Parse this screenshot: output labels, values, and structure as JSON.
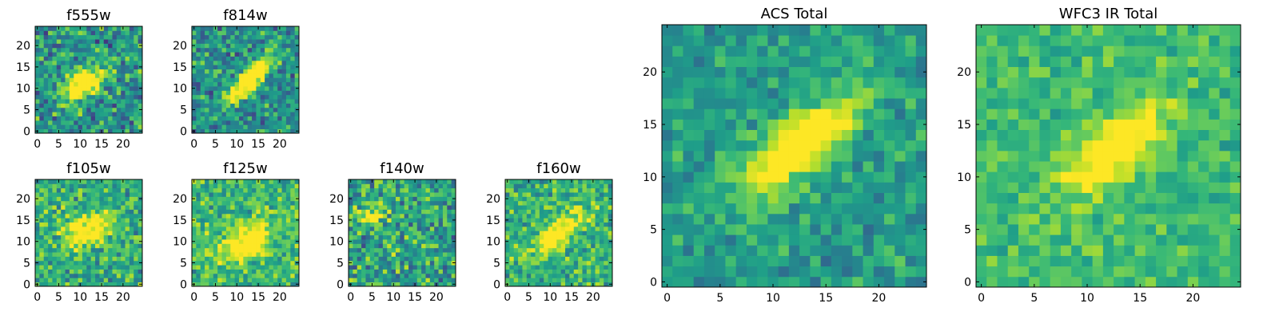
{
  "figure": {
    "background": "#ffffff",
    "colormap": "viridis"
  },
  "chart_data": [
    {
      "type": "heatmap",
      "title": "f555w",
      "grid_size": 25,
      "xlim": [
        0,
        24
      ],
      "ylim": [
        0,
        24
      ],
      "xticks": [
        "0",
        "5",
        "10",
        "15",
        "20"
      ],
      "yticks": [
        "0",
        "5",
        "10",
        "15",
        "20"
      ],
      "feature": {
        "cx": 11,
        "cy": 11,
        "sigma": 2.6,
        "elongation": 1.5,
        "angle_deg": 35,
        "peak": 0.85
      },
      "noise_level": 0.38,
      "seed": 11,
      "background_level": 0.52
    },
    {
      "type": "heatmap",
      "title": "f814w",
      "grid_size": 25,
      "xlim": [
        0,
        24
      ],
      "ylim": [
        0,
        24
      ],
      "xticks": [
        "0",
        "5",
        "10",
        "15",
        "20"
      ],
      "yticks": [
        "0",
        "5",
        "10",
        "15",
        "20"
      ],
      "feature": {
        "cx": 13,
        "cy": 12,
        "sigma": 2.2,
        "elongation": 2.2,
        "angle_deg": 45,
        "peak": 0.95
      },
      "noise_level": 0.34,
      "seed": 23,
      "background_level": 0.5
    },
    {
      "type": "heatmap",
      "title": "f105w",
      "grid_size": 25,
      "xlim": [
        0,
        24
      ],
      "ylim": [
        0,
        24
      ],
      "xticks": [
        "0",
        "5",
        "10",
        "15",
        "20"
      ],
      "yticks": [
        "0",
        "5",
        "10",
        "15",
        "20"
      ],
      "feature": {
        "cx": 12,
        "cy": 13,
        "sigma": 3.0,
        "elongation": 1.3,
        "angle_deg": 20,
        "peak": 0.55
      },
      "noise_level": 0.32,
      "seed": 37,
      "background_level": 0.62
    },
    {
      "type": "heatmap",
      "title": "f125w",
      "grid_size": 25,
      "xlim": [
        0,
        24
      ],
      "ylim": [
        0,
        24
      ],
      "xticks": [
        "0",
        "5",
        "10",
        "15",
        "20"
      ],
      "yticks": [
        "0",
        "5",
        "10",
        "15",
        "20"
      ],
      "feature": {
        "cx": 12,
        "cy": 10,
        "sigma": 3.2,
        "elongation": 1.4,
        "angle_deg": 30,
        "peak": 0.55
      },
      "noise_level": 0.3,
      "seed": 41,
      "background_level": 0.66
    },
    {
      "type": "heatmap",
      "title": "f140w",
      "grid_size": 25,
      "xlim": [
        0,
        24
      ],
      "ylim": [
        0,
        24
      ],
      "xticks": [
        "0",
        "5",
        "10",
        "15",
        "20"
      ],
      "yticks": [
        "0",
        "5",
        "10",
        "15",
        "20"
      ],
      "feature": {
        "cx": 5,
        "cy": 16,
        "sigma": 1.8,
        "elongation": 1.2,
        "angle_deg": 0,
        "peak": 0.45
      },
      "noise_level": 0.38,
      "seed": 53,
      "background_level": 0.58
    },
    {
      "type": "heatmap",
      "title": "f160w",
      "grid_size": 25,
      "xlim": [
        0,
        24
      ],
      "ylim": [
        0,
        24
      ],
      "xticks": [
        "0",
        "5",
        "10",
        "15",
        "20"
      ],
      "yticks": [
        "0",
        "5",
        "10",
        "15",
        "20"
      ],
      "feature": {
        "cx": 12,
        "cy": 12,
        "sigma": 2.5,
        "elongation": 2.0,
        "angle_deg": 40,
        "peak": 0.6
      },
      "noise_level": 0.3,
      "seed": 67,
      "background_level": 0.64
    },
    {
      "type": "heatmap",
      "title": "ACS Total",
      "grid_size": 25,
      "xlim": [
        0,
        24
      ],
      "ylim": [
        0,
        24
      ],
      "xticks": [
        "0",
        "5",
        "10",
        "15",
        "20"
      ],
      "yticks": [
        "0",
        "5",
        "10",
        "15",
        "20"
      ],
      "feature": {
        "cx": 12.5,
        "cy": 13,
        "sigma": 2.4,
        "elongation": 1.9,
        "angle_deg": 38,
        "peak": 0.75
      },
      "noise_level": 0.22,
      "seed": 79,
      "background_level": 0.55
    },
    {
      "type": "heatmap",
      "title": "WFC3 IR Total",
      "grid_size": 25,
      "xlim": [
        0,
        24
      ],
      "ylim": [
        0,
        24
      ],
      "xticks": [
        "0",
        "5",
        "10",
        "15",
        "20"
      ],
      "yticks": [
        "0",
        "5",
        "10",
        "15",
        "20"
      ],
      "feature": {
        "cx": 12.5,
        "cy": 12.5,
        "sigma": 2.3,
        "elongation": 1.7,
        "angle_deg": 40,
        "peak": 0.55
      },
      "noise_level": 0.18,
      "seed": 97,
      "background_level": 0.68
    }
  ]
}
